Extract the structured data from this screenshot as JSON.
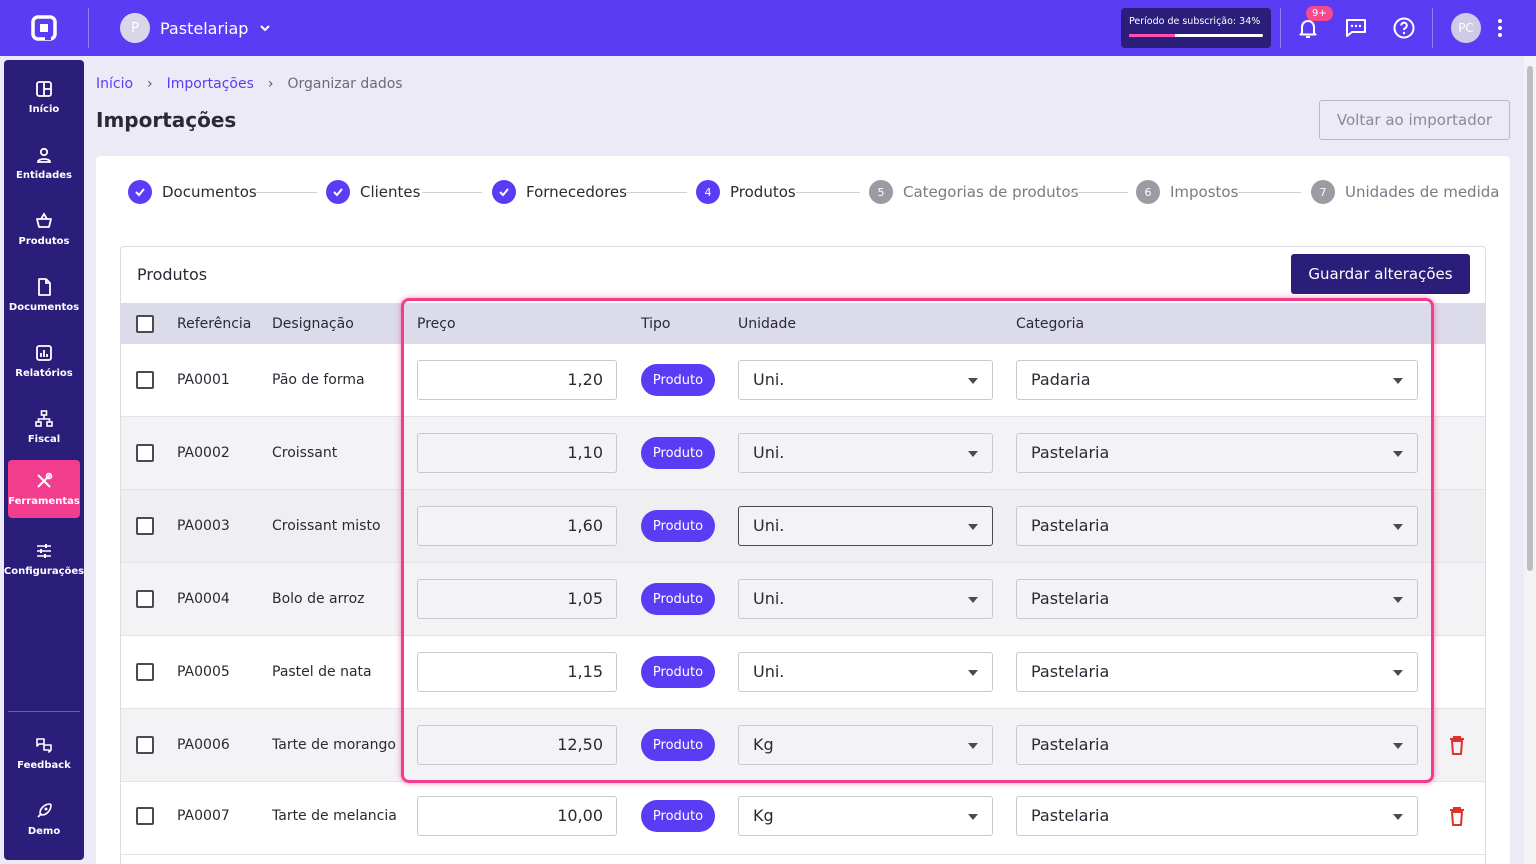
{
  "topbar": {
    "company_initial": "P",
    "company_name": "Pastelariap",
    "subscription_label": "Período de subscrição: 34%",
    "subscription_progress": 0.34,
    "notification_badge": "9+",
    "user_initials": "PC"
  },
  "sidebar": {
    "items": [
      {
        "label": "Início",
        "icon": "grid-icon"
      },
      {
        "label": "Entidades",
        "icon": "person-icon"
      },
      {
        "label": "Produtos",
        "icon": "basket-icon"
      },
      {
        "label": "Documentos",
        "icon": "document-icon"
      },
      {
        "label": "Relatórios",
        "icon": "chart-icon"
      },
      {
        "label": "Fiscal",
        "icon": "hierarchy-icon"
      },
      {
        "label": "Ferramentas",
        "icon": "tools-icon"
      },
      {
        "label": "Configurações",
        "icon": "sliders-icon"
      }
    ],
    "bottom": [
      {
        "label": "Feedback",
        "icon": "feedback-icon"
      },
      {
        "label": "Demo",
        "icon": "rocket-icon"
      }
    ]
  },
  "breadcrumb": {
    "home": "Início",
    "imports": "Importações",
    "current": "Organizar dados"
  },
  "page_title": "Importações",
  "back_button": "Voltar ao importador",
  "steps": [
    {
      "number": "1",
      "label": "Documentos",
      "state": "done"
    },
    {
      "number": "2",
      "label": "Clientes",
      "state": "done"
    },
    {
      "number": "3",
      "label": "Fornecedores",
      "state": "done"
    },
    {
      "number": "4",
      "label": "Produtos",
      "state": "current"
    },
    {
      "number": "5",
      "label": "Categorias de produtos",
      "state": "todo"
    },
    {
      "number": "6",
      "label": "Impostos",
      "state": "todo"
    },
    {
      "number": "7",
      "label": "Unidades de medida",
      "state": "todo"
    }
  ],
  "table": {
    "title": "Produtos",
    "save_button": "Guardar alterações",
    "headers": {
      "reference": "Referência",
      "designation": "Designação",
      "price": "Preço",
      "type": "Tipo",
      "unit": "Unidade",
      "category": "Categoria"
    },
    "rows": [
      {
        "ref": "PA0001",
        "name": "Pão de forma",
        "price": "1,20",
        "type": "Produto",
        "unit": "Uni.",
        "category": "Padaria"
      },
      {
        "ref": "PA0002",
        "name": "Croissant",
        "price": "1,10",
        "type": "Produto",
        "unit": "Uni.",
        "category": "Pastelaria"
      },
      {
        "ref": "PA0003",
        "name": "Croissant misto",
        "price": "1,60",
        "type": "Produto",
        "unit": "Uni.",
        "category": "Pastelaria"
      },
      {
        "ref": "PA0004",
        "name": "Bolo de arroz",
        "price": "1,05",
        "type": "Produto",
        "unit": "Uni.",
        "category": "Pastelaria"
      },
      {
        "ref": "PA0005",
        "name": "Pastel de nata",
        "price": "1,15",
        "type": "Produto",
        "unit": "Uni.",
        "category": "Pastelaria"
      },
      {
        "ref": "PA0006",
        "name": "Tarte de morango",
        "price": "12,50",
        "type": "Produto",
        "unit": "Kg",
        "category": "Pastelaria"
      },
      {
        "ref": "PA0007",
        "name": "Tarte de melancia",
        "price": "10,00",
        "type": "Produto",
        "unit": "Kg",
        "category": "Pastelaria"
      }
    ]
  },
  "colors": {
    "brand": "#5b3cf5",
    "sidebar": "#2a1e7a",
    "accent": "#f23d8e",
    "delete": "#e0312c"
  }
}
